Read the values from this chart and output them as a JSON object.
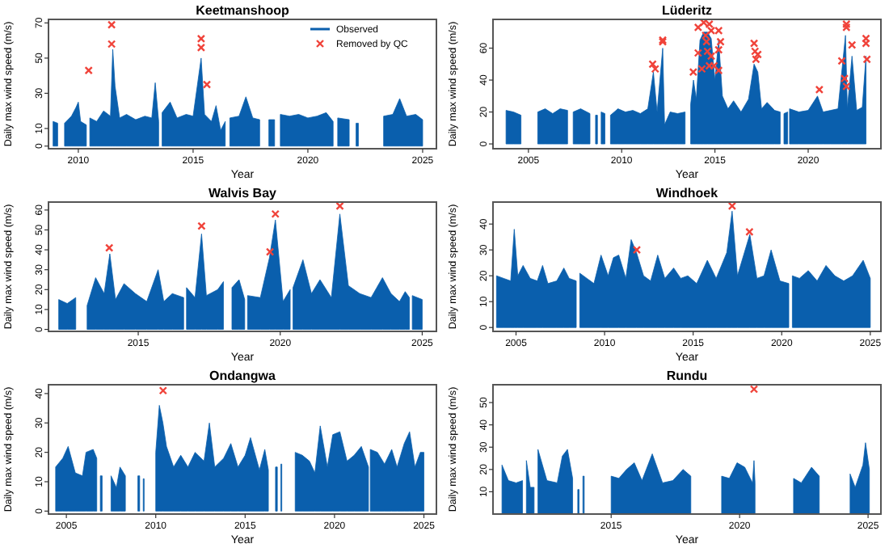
{
  "chart_data": [
    {
      "type": "area",
      "title": "Keetmanshoop",
      "xlabel": "Year",
      "ylabel": "Daily max wind speed (m/s)",
      "xlim": [
        2008.7,
        2025.6
      ],
      "xticks": [
        2010,
        2015,
        2020,
        2025
      ],
      "ylim": [
        -1.5,
        72
      ],
      "yticks": [
        0,
        10,
        30,
        50,
        70
      ],
      "legend": "top right",
      "series": [
        {
          "name": "Observed",
          "type": "area",
          "color": "#0a5fad",
          "x": [
            2008.9,
            2009.1,
            2009.2,
            2009.4,
            2009.7,
            2009.9,
            2010.0,
            2010.1,
            2010.35,
            2010.4,
            2010.5,
            2010.8,
            2011.1,
            2011.4,
            2011.5,
            2011.6,
            2011.8,
            2012.1,
            2012.5,
            2012.9,
            2013.2,
            2013.35,
            2013.5,
            2013.55,
            2013.65,
            2014.0,
            2014.3,
            2014.7,
            2015.0,
            2015.35,
            2015.5,
            2015.8,
            2016.0,
            2016.2,
            2016.4,
            2016.5,
            2016.6,
            2017.0,
            2017.3,
            2017.6,
            2017.9,
            2018.0,
            2018.3,
            2018.55,
            2018.7,
            2018.8,
            2019.2,
            2019.6,
            2020.0,
            2020.4,
            2020.8,
            2021.1,
            2021.2,
            2021.3,
            2021.8,
            2021.9,
            2022.1,
            2022.2,
            2022.5,
            2023.3,
            2023.7,
            2024.0,
            2024.3,
            2024.7,
            2025.0
          ],
          "values": [
            14,
            13,
            null,
            13,
            17,
            22,
            25,
            14,
            12,
            null,
            16,
            14,
            20,
            17,
            55,
            34,
            16,
            18,
            15,
            17,
            16,
            36,
            14,
            null,
            19,
            25,
            16,
            18,
            17,
            50,
            18,
            14,
            23,
            9,
            14,
            null,
            16,
            17,
            28,
            16,
            15,
            null,
            15,
            15,
            null,
            18,
            17,
            18,
            16,
            17,
            19,
            14,
            null,
            16,
            15,
            null,
            13,
            13,
            null,
            17,
            18,
            27,
            17,
            18,
            15
          ]
        },
        {
          "name": "Removed by QC",
          "type": "scatter",
          "marker": "cross",
          "color": "#f0433a",
          "x": [
            2010.45,
            2011.45,
            2011.45,
            2015.35,
            2015.35,
            2015.6
          ],
          "values": [
            43,
            69,
            58,
            61,
            56,
            35
          ]
        }
      ]
    },
    {
      "type": "area",
      "title": "Lüderitz",
      "xlabel": "Year",
      "ylabel": "Daily max wind speed (m/s)",
      "xlim": [
        2003.1,
        2023.9
      ],
      "xticks": [
        2005,
        2010,
        2015,
        2020
      ],
      "ylim": [
        -3,
        78
      ],
      "yticks": [
        0,
        20,
        40,
        60
      ],
      "legend": false,
      "series": [
        {
          "type": "area",
          "color": "#0a5fad",
          "x": [
            2003.8,
            2004.2,
            2004.6,
            2004.8,
            2005.5,
            2005.9,
            2006.3,
            2006.7,
            2007.1,
            2007.2,
            2007.4,
            2007.8,
            2008.3,
            2008.4,
            2008.6,
            2008.7,
            2008.8,
            2008.9,
            2009.1,
            2009.2,
            2009.4,
            2009.8,
            2010.2,
            2010.6,
            2011.0,
            2011.4,
            2011.7,
            2011.9,
            2012.2,
            2012.3,
            2012.6,
            2013.0,
            2013.4,
            2013.55,
            2013.7,
            2013.85,
            2014.0,
            2014.2,
            2014.4,
            2014.6,
            2014.8,
            2015.0,
            2015.2,
            2015.4,
            2015.7,
            2016.0,
            2016.4,
            2016.8,
            2017.1,
            2017.3,
            2017.5,
            2017.8,
            2018.2,
            2018.5,
            2018.6,
            2018.7,
            2018.9,
            2018.95,
            2019.0,
            2019.5,
            2020.0,
            2020.5,
            2020.8,
            2021.2,
            2021.6,
            2021.8,
            2022.0,
            2022.1,
            2022.35,
            2022.6,
            2022.9,
            2023.1
          ],
          "values": [
            21,
            20,
            18,
            null,
            20,
            22,
            19,
            22,
            21,
            null,
            20,
            22,
            19,
            null,
            18,
            18,
            null,
            20,
            19,
            null,
            18,
            22,
            20,
            21,
            19,
            22,
            45,
            20,
            60,
            12,
            20,
            19,
            20,
            null,
            25,
            40,
            28,
            65,
            70,
            70,
            66,
            40,
            65,
            30,
            22,
            27,
            20,
            28,
            50,
            45,
            22,
            26,
            21,
            20,
            null,
            19,
            20,
            null,
            22,
            20,
            21,
            30,
            20,
            21,
            22,
            45,
            68,
            22,
            55,
            21,
            23,
            55
          ]
        },
        {
          "type": "scatter",
          "marker": "cross",
          "color": "#f0433a",
          "x": [
            2011.66,
            2011.8,
            2012.2,
            2012.2,
            2013.84,
            2014.1,
            2014.1,
            2014.3,
            2014.4,
            2014.5,
            2014.55,
            2014.6,
            2014.7,
            2014.7,
            2014.8,
            2014.8,
            2014.95,
            2015.2,
            2015.2,
            2015.2,
            2015.3,
            2017.1,
            2017.15,
            2017.2,
            2017.3,
            2020.6,
            2021.8,
            2021.95,
            2022.05,
            2022.05,
            2022.05,
            2022.35,
            2023.1,
            2023.1,
            2023.15
          ],
          "values": [
            50,
            47,
            65,
            64,
            45,
            57,
            73,
            47,
            76,
            68,
            64,
            58,
            75,
            49,
            71,
            55,
            49,
            46,
            71,
            59,
            64,
            63,
            58,
            53,
            56,
            34,
            52,
            41,
            36,
            75,
            73,
            62,
            66,
            63,
            53
          ]
        }
      ]
    },
    {
      "type": "area",
      "title": "Walvis Bay",
      "xlabel": "Year",
      "ylabel": "Daily max wind speed (m/s)",
      "xlim": [
        2011.84,
        2025.5
      ],
      "xticks": [
        2015,
        2020,
        2025
      ],
      "ylim": [
        -1,
        64
      ],
      "yticks": [
        0,
        10,
        20,
        30,
        40,
        50,
        60
      ],
      "legend": false,
      "series": [
        {
          "type": "area",
          "color": "#0a5fad",
          "x": [
            2012.2,
            2012.5,
            2012.8,
            2012.9,
            2013.2,
            2013.5,
            2013.8,
            2014.0,
            2014.2,
            2014.5,
            2014.9,
            2015.3,
            2015.7,
            2015.9,
            2016.2,
            2016.6,
            2016.65,
            2016.7,
            2017.0,
            2017.23,
            2017.4,
            2017.8,
            2018.0,
            2018.05,
            2018.3,
            2018.55,
            2018.75,
            2018.8,
            2018.85,
            2019.3,
            2019.62,
            2019.83,
            2020.1,
            2020.35,
            2020.4,
            2020.45,
            2020.8,
            2021.1,
            2021.4,
            2021.8,
            2022.1,
            2022.4,
            2022.8,
            2023.2,
            2023.6,
            2023.9,
            2024.2,
            2024.4,
            2024.55,
            2024.6,
            2024.65,
            2025.0
          ],
          "values": [
            15,
            13,
            16,
            null,
            12,
            26,
            18,
            38,
            15,
            23,
            18,
            14,
            30,
            14,
            18,
            16,
            null,
            21,
            16,
            48,
            17,
            20,
            24,
            null,
            21,
            25,
            15,
            null,
            17,
            16,
            36,
            55,
            14,
            20,
            null,
            21,
            35,
            18,
            25,
            16,
            58,
            22,
            18,
            16,
            26,
            18,
            14,
            19,
            16,
            null,
            17,
            15
          ]
        },
        {
          "type": "scatter",
          "marker": "cross",
          "color": "#f0433a",
          "x": [
            2013.98,
            2017.23,
            2019.64,
            2019.83,
            2022.1
          ],
          "values": [
            41,
            52,
            39,
            58,
            62
          ]
        }
      ]
    },
    {
      "type": "area",
      "title": "Windhoek",
      "xlabel": "Year",
      "ylabel": "Daily max wind speed (m/s)",
      "xlim": [
        2003.7,
        2025.6
      ],
      "xticks": [
        2005,
        2010,
        2015,
        2020,
        2025
      ],
      "ylim": [
        -1.5,
        48.5
      ],
      "yticks": [
        0,
        10,
        20,
        30,
        40
      ],
      "legend": false,
      "series": [
        {
          "type": "area",
          "color": "#0a5fad",
          "x": [
            2003.9,
            2004.3,
            2004.7,
            2004.9,
            2005.1,
            2005.4,
            2005.8,
            2006.2,
            2006.5,
            2006.8,
            2007.3,
            2007.7,
            2008.0,
            2008.4,
            2008.5,
            2008.6,
            2009.0,
            2009.4,
            2009.8,
            2010.2,
            2010.5,
            2010.8,
            2011.2,
            2011.5,
            2011.8,
            2012.2,
            2012.6,
            2013.0,
            2013.4,
            2013.9,
            2014.3,
            2014.7,
            2015.2,
            2015.8,
            2016.3,
            2016.9,
            2017.2,
            2017.5,
            2018.2,
            2018.6,
            2019.0,
            2019.4,
            2019.9,
            2020.4,
            2020.5,
            2020.6,
            2021.0,
            2021.5,
            2022.0,
            2022.5,
            2023.0,
            2023.5,
            2024.0,
            2024.6,
            2025.0
          ],
          "values": [
            20,
            19,
            18,
            38,
            20,
            24,
            19,
            18,
            24,
            17,
            18,
            23,
            19,
            18,
            null,
            21,
            19,
            17,
            28,
            20,
            27,
            28,
            19,
            34,
            29,
            20,
            18,
            28,
            19,
            23,
            19,
            20,
            17,
            26,
            19,
            29,
            45,
            20,
            36,
            19,
            20,
            30,
            18,
            17,
            null,
            20,
            19,
            22,
            18,
            24,
            20,
            18,
            20,
            26,
            19
          ]
        },
        {
          "type": "scatter",
          "marker": "cross",
          "color": "#f0433a",
          "x": [
            2011.82,
            2017.2,
            2018.18
          ],
          "values": [
            30,
            47,
            37
          ]
        }
      ]
    },
    {
      "type": "area",
      "title": "Ondangwa",
      "xlabel": "Year",
      "ylabel": "Daily max wind speed (m/s)",
      "xlim": [
        2004.0,
        2025.7
      ],
      "xticks": [
        2005,
        2010,
        2015,
        2020,
        2025
      ],
      "ylim": [
        -1,
        43
      ],
      "yticks": [
        0,
        10,
        20,
        30,
        40
      ],
      "legend": false,
      "series": [
        {
          "type": "area",
          "color": "#0a5fad",
          "x": [
            2004.4,
            2004.8,
            2005.1,
            2005.5,
            2005.9,
            2006.1,
            2006.5,
            2006.7,
            2006.8,
            2006.9,
            2007.0,
            2007.1,
            2007.5,
            2007.8,
            2008.0,
            2008.3,
            2008.4,
            2009.0,
            2009.1,
            2009.2,
            2009.3,
            2009.35,
            2009.4,
            2010.0,
            2010.2,
            2010.4,
            2010.6,
            2011.0,
            2011.4,
            2011.8,
            2012.2,
            2012.7,
            2013.0,
            2013.3,
            2013.8,
            2014.2,
            2014.6,
            2015.0,
            2015.3,
            2015.8,
            2016.1,
            2016.3,
            2016.4,
            2016.7,
            2016.8,
            2016.9,
            2017.0,
            2017.05,
            2017.2,
            2017.8,
            2018.2,
            2018.6,
            2018.9,
            2019.2,
            2019.6,
            2019.9,
            2020.3,
            2020.7,
            2021.1,
            2021.5,
            2021.9,
            2021.95,
            2022.0,
            2022.4,
            2022.8,
            2023.2,
            2023.5,
            2023.9,
            2024.2,
            2024.5,
            2024.8,
            2025.0
          ],
          "values": [
            15,
            18,
            22,
            13,
            12,
            20,
            21,
            18,
            null,
            12,
            12,
            null,
            12,
            8,
            15,
            12,
            null,
            12,
            12,
            null,
            11,
            11,
            null,
            20,
            36,
            30,
            22,
            15,
            19,
            15,
            20,
            17,
            30,
            15,
            18,
            23,
            15,
            19,
            25,
            14,
            21,
            14,
            null,
            15,
            15,
            null,
            16,
            16,
            null,
            20,
            19,
            17,
            13,
            29,
            15,
            26,
            27,
            17,
            19,
            22,
            15,
            null,
            21,
            20,
            16,
            21,
            15,
            23,
            27,
            15,
            20,
            20
          ]
        },
        {
          "type": "scatter",
          "marker": "cross",
          "color": "#f0433a",
          "x": [
            2010.41
          ],
          "values": [
            41
          ]
        }
      ]
    },
    {
      "type": "area",
      "title": "Rundu",
      "xlabel": "Year",
      "ylabel": "Daily max wind speed (m/s)",
      "xlim": [
        2010.4,
        2025.5
      ],
      "xticks": [
        2015,
        2020,
        2025
      ],
      "ylim": [
        0,
        58
      ],
      "yticks": [
        10,
        20,
        30,
        40,
        50
      ],
      "legend": false,
      "series": [
        {
          "type": "area",
          "color": "#0a5fad",
          "x": [
            2010.75,
            2011.0,
            2011.3,
            2011.55,
            2011.6,
            2011.7,
            2011.85,
            2012.0,
            2012.05,
            2012.15,
            2012.5,
            2012.9,
            2013.1,
            2013.3,
            2013.5,
            2013.55,
            2013.7,
            2013.75,
            2013.8,
            2013.9,
            2013.95,
            2014.0,
            2015.0,
            2015.3,
            2015.6,
            2015.9,
            2016.2,
            2016.6,
            2017.0,
            2017.4,
            2017.8,
            2018.1,
            2018.2,
            2019.3,
            2019.6,
            2019.9,
            2020.2,
            2020.5,
            2020.56,
            2020.6,
            2020.7,
            2022.1,
            2022.4,
            2022.8,
            2023.1,
            2023.2,
            2024.3,
            2024.5,
            2024.8,
            2024.9,
            2025.05
          ],
          "values": [
            22,
            15,
            14,
            15,
            null,
            24,
            12,
            12,
            null,
            29,
            15,
            14,
            26,
            29,
            16,
            null,
            11,
            11,
            null,
            17,
            17,
            null,
            17,
            16,
            20,
            23,
            15,
            27,
            14,
            15,
            20,
            17,
            null,
            17,
            16,
            23,
            21,
            14,
            24,
            14,
            null,
            16,
            14,
            21,
            17,
            null,
            18,
            12,
            22,
            32,
            20
          ]
        },
        {
          "type": "scatter",
          "marker": "cross",
          "color": "#f0433a",
          "x": [
            2020.56
          ],
          "values": [
            56
          ]
        }
      ]
    }
  ]
}
